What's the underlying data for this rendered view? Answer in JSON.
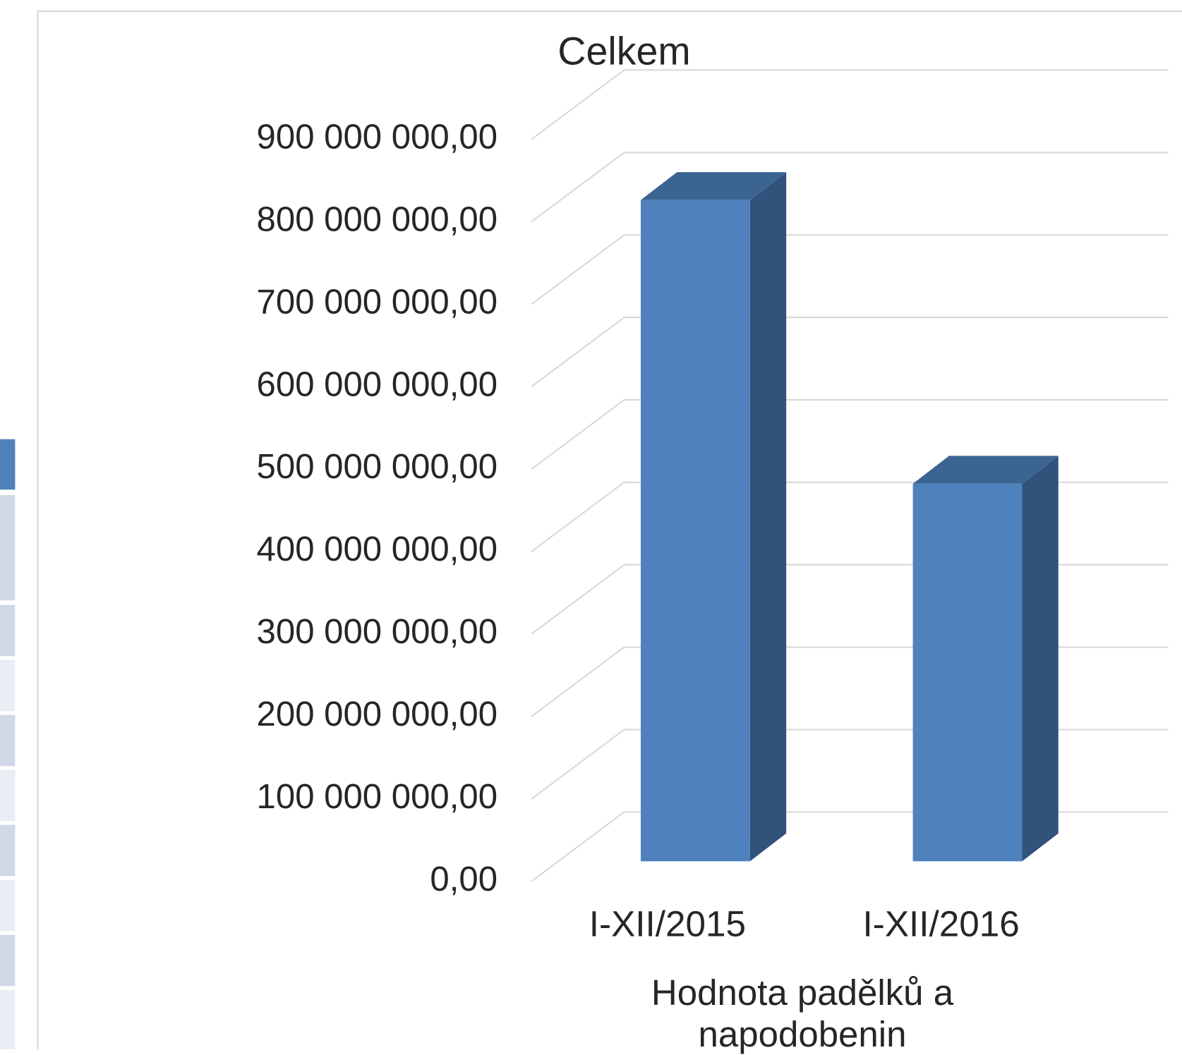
{
  "chart_data": {
    "type": "bar3d",
    "title": "Celkem",
    "categories": [
      "I-XII/2015",
      "I-XII/2016"
    ],
    "values": [
      802000000,
      458000000
    ],
    "color": "#4f81bd",
    "x_label": "Hodnota padělků a napodobenin",
    "ylim": [
      0,
      900000000
    ],
    "yticks": [
      {
        "value": 0,
        "label": "0,00"
      },
      {
        "value": 100000000,
        "label": "100 000 000,00"
      },
      {
        "value": 200000000,
        "label": "200 000 000,00"
      },
      {
        "value": 300000000,
        "label": "300 000 000,00"
      },
      {
        "value": 400000000,
        "label": "400 000 000,00"
      },
      {
        "value": 500000000,
        "label": "500 000 000,00"
      },
      {
        "value": 600000000,
        "label": "600 000 000,00"
      },
      {
        "value": 700000000,
        "label": "700 000 000,00"
      },
      {
        "value": 800000000,
        "label": "800 000 000,00"
      },
      {
        "value": 900000000,
        "label": "900 000 000,00"
      }
    ],
    "grid": true
  }
}
